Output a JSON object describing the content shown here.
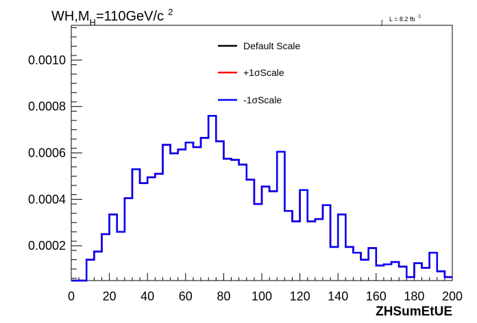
{
  "chart_data": {
    "type": "line",
    "title": "WH,M",
    "title_sub": "H",
    "title_rest": "=110GeV/c",
    "title_sup": "2",
    "lumi": {
      "integral": "∫",
      "text": "L = 8.2 fb",
      "sup": "-1"
    },
    "xlabel": "ZHSumEtUE",
    "ylabel": "",
    "xlim": [
      0,
      200
    ],
    "ylim": [
      5e-05,
      0.00115
    ],
    "x_ticks": [
      0,
      20,
      40,
      60,
      80,
      100,
      120,
      140,
      160,
      180,
      200
    ],
    "y_ticks": [
      0.0002,
      0.0004,
      0.0006,
      0.0008,
      0.001
    ],
    "y_tick_labels": [
      "0.0002",
      "0.0004",
      "0.0006",
      "0.0008",
      "0.0010"
    ],
    "bin_width": 4,
    "x": [
      0,
      4,
      8,
      12,
      16,
      20,
      24,
      28,
      32,
      36,
      40,
      44,
      48,
      52,
      56,
      60,
      64,
      68,
      72,
      76,
      80,
      84,
      88,
      92,
      96,
      100,
      104,
      108,
      112,
      116,
      120,
      124,
      128,
      132,
      136,
      140,
      144,
      148,
      152,
      156,
      160,
      164,
      168,
      172,
      176,
      180,
      184,
      188,
      192,
      196
    ],
    "series": [
      {
        "name": "Default Scale",
        "color": "#000000",
        "values": [
          5e-05,
          5e-05,
          0.00014,
          0.000175,
          0.00025,
          0.000335,
          0.00026,
          0.000405,
          0.00053,
          0.00047,
          0.000495,
          0.00051,
          0.000635,
          0.000598,
          0.000615,
          0.000645,
          0.000625,
          0.000665,
          0.00076,
          0.00065,
          0.000575,
          0.00057,
          0.00055,
          0.000485,
          0.00038,
          0.000455,
          0.000435,
          0.000605,
          0.00035,
          0.000305,
          0.00044,
          0.000305,
          0.000315,
          0.000375,
          0.000195,
          0.000335,
          0.000195,
          0.00017,
          0.00014,
          0.00019,
          0.000115,
          0.00012,
          0.00013,
          0.00011,
          6.5e-05,
          0.000125,
          0.000105,
          0.00017,
          9e-05,
          6.5e-05
        ]
      },
      {
        "name": "+1σScale",
        "color": "#ff0000",
        "values": [
          5e-05,
          5e-05,
          0.00014,
          0.000175,
          0.00025,
          0.000335,
          0.00026,
          0.000405,
          0.00053,
          0.00047,
          0.000495,
          0.00051,
          0.000635,
          0.000598,
          0.000615,
          0.000645,
          0.000625,
          0.000665,
          0.00076,
          0.00065,
          0.000575,
          0.00057,
          0.00055,
          0.000485,
          0.00038,
          0.000455,
          0.000435,
          0.000605,
          0.00035,
          0.000305,
          0.00044,
          0.000305,
          0.000315,
          0.000375,
          0.000195,
          0.000335,
          0.000195,
          0.00017,
          0.00014,
          0.00019,
          0.000115,
          0.00012,
          0.00013,
          0.00011,
          6.5e-05,
          0.000125,
          0.000105,
          0.00017,
          9e-05,
          6.5e-05
        ]
      },
      {
        "name": "-1σScale",
        "color": "#0000ff",
        "values": [
          5e-05,
          5e-05,
          0.00014,
          0.000175,
          0.00025,
          0.000335,
          0.00026,
          0.000405,
          0.00053,
          0.00047,
          0.000495,
          0.00051,
          0.000635,
          0.000598,
          0.000615,
          0.000645,
          0.000625,
          0.000665,
          0.00076,
          0.00065,
          0.000575,
          0.00057,
          0.00055,
          0.000485,
          0.00038,
          0.000455,
          0.000435,
          0.000605,
          0.00035,
          0.000305,
          0.00044,
          0.000305,
          0.000315,
          0.000375,
          0.000195,
          0.000335,
          0.000195,
          0.00017,
          0.00014,
          0.00019,
          0.000115,
          0.00012,
          0.00013,
          0.00011,
          6.5e-05,
          0.000125,
          0.000105,
          0.00017,
          9e-05,
          6.5e-05
        ]
      }
    ],
    "legend": {
      "position": "top-center"
    },
    "grid": false
  }
}
